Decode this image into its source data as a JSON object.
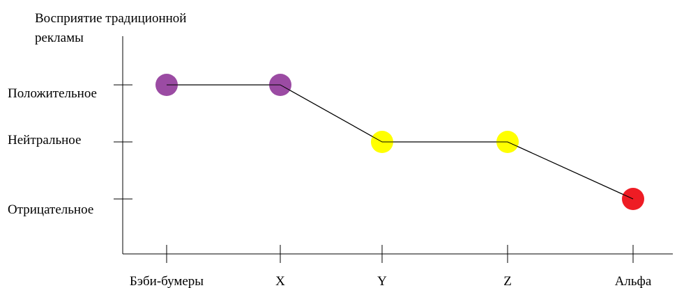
{
  "chart_data": {
    "type": "line",
    "title": "",
    "ylabel": "Восприятие традиционной рекламы",
    "xlabel": "",
    "categories": [
      "Бэби-бумеры",
      "X",
      "Y",
      "Z",
      "Альфа"
    ],
    "y_levels": [
      "Положительное",
      "Нейтральное",
      "Отрицательное"
    ],
    "ylim": [
      -1,
      1
    ],
    "grid": false,
    "legend": "none",
    "series": [
      {
        "values": [
          1,
          1,
          0,
          0,
          -1
        ],
        "point_colors": [
          "#9b4ba3",
          "#9b4ba3",
          "#ffff00",
          "#ffff00",
          "#ee1c24"
        ]
      }
    ]
  }
}
